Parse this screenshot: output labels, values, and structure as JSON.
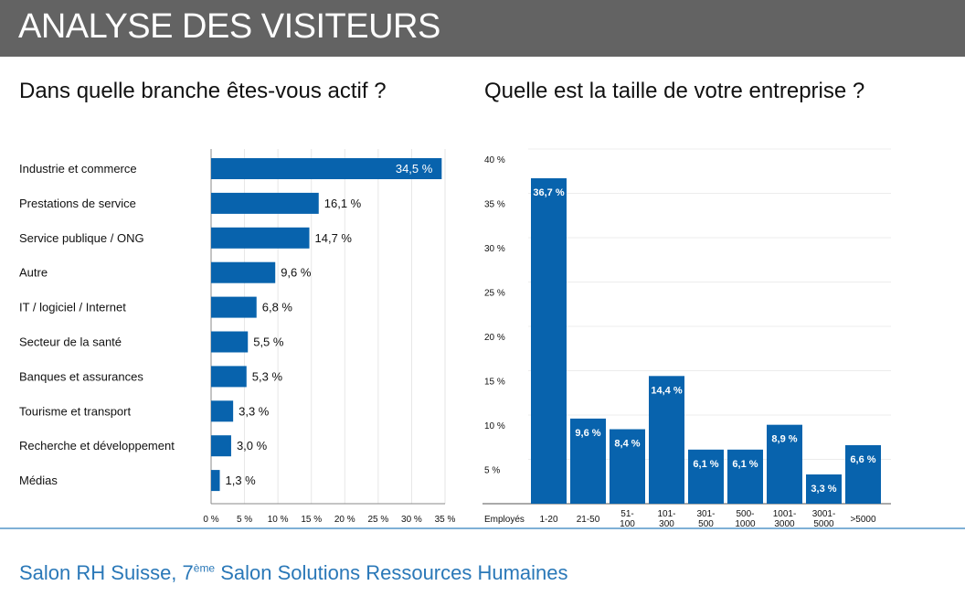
{
  "header": {
    "title": "ANALYSE DES VISITEURS"
  },
  "footer": {
    "prefix": "Salon RH Suisse, 7",
    "sup": "ème",
    "suffix": " Salon Solutions Ressources Humaines"
  },
  "colors": {
    "bar": "#0863ad",
    "header": "#636363",
    "footer": "#2a78b8"
  },
  "chart_data": [
    {
      "type": "bar",
      "orientation": "horizontal",
      "title": "Dans quelle branche êtes-vous actif ?",
      "categories": [
        "Industrie et commerce",
        "Prestations de service",
        "Service publique / ONG",
        "Autre",
        "IT / logiciel / Internet",
        "Secteur de la santé",
        "Banques et assurances",
        "Tourisme et transport",
        "Recherche et développement",
        "Médias"
      ],
      "values": [
        34.5,
        16.1,
        14.7,
        9.6,
        6.8,
        5.5,
        5.3,
        3.3,
        3.0,
        1.3
      ],
      "labels": [
        "34,5 %",
        "16,1 %",
        "14,7 %",
        "9,6 %",
        "6,8 %",
        "5,5 %",
        "5,3 %",
        "3,3 %",
        "3,0 %",
        "1,3 %"
      ],
      "xticks": [
        "0 %",
        "5 %",
        "10 %",
        "15 %",
        "20 %",
        "25 %",
        "30 %",
        "35 %"
      ],
      "xlim": [
        0,
        35
      ],
      "grid": true
    },
    {
      "type": "bar",
      "orientation": "vertical",
      "title": "Quelle est la taille de votre entreprise ?",
      "xlabel": "Employés",
      "categories": [
        [
          "1-20"
        ],
        [
          "21-50"
        ],
        [
          "51-",
          "100"
        ],
        [
          "101-",
          "300"
        ],
        [
          "301-",
          "500"
        ],
        [
          "500-",
          "1000"
        ],
        [
          "1001-",
          "3000"
        ],
        [
          "3001-",
          "5000"
        ],
        [
          ">5000"
        ]
      ],
      "values": [
        36.7,
        9.6,
        8.4,
        14.4,
        6.1,
        6.1,
        8.9,
        3.3,
        6.6
      ],
      "labels": [
        "36,7 %",
        "9,6 %",
        "8,4 %",
        "14,4 %",
        "6,1 %",
        "6,1 %",
        "8,9 %",
        "3,3 %",
        "6,6 %"
      ],
      "yticks": [
        "5 %",
        "10 %",
        "15 %",
        "20 %",
        "25 %",
        "30 %",
        "35 %",
        "40 %"
      ],
      "ylim": [
        0,
        40
      ],
      "grid": true
    }
  ]
}
